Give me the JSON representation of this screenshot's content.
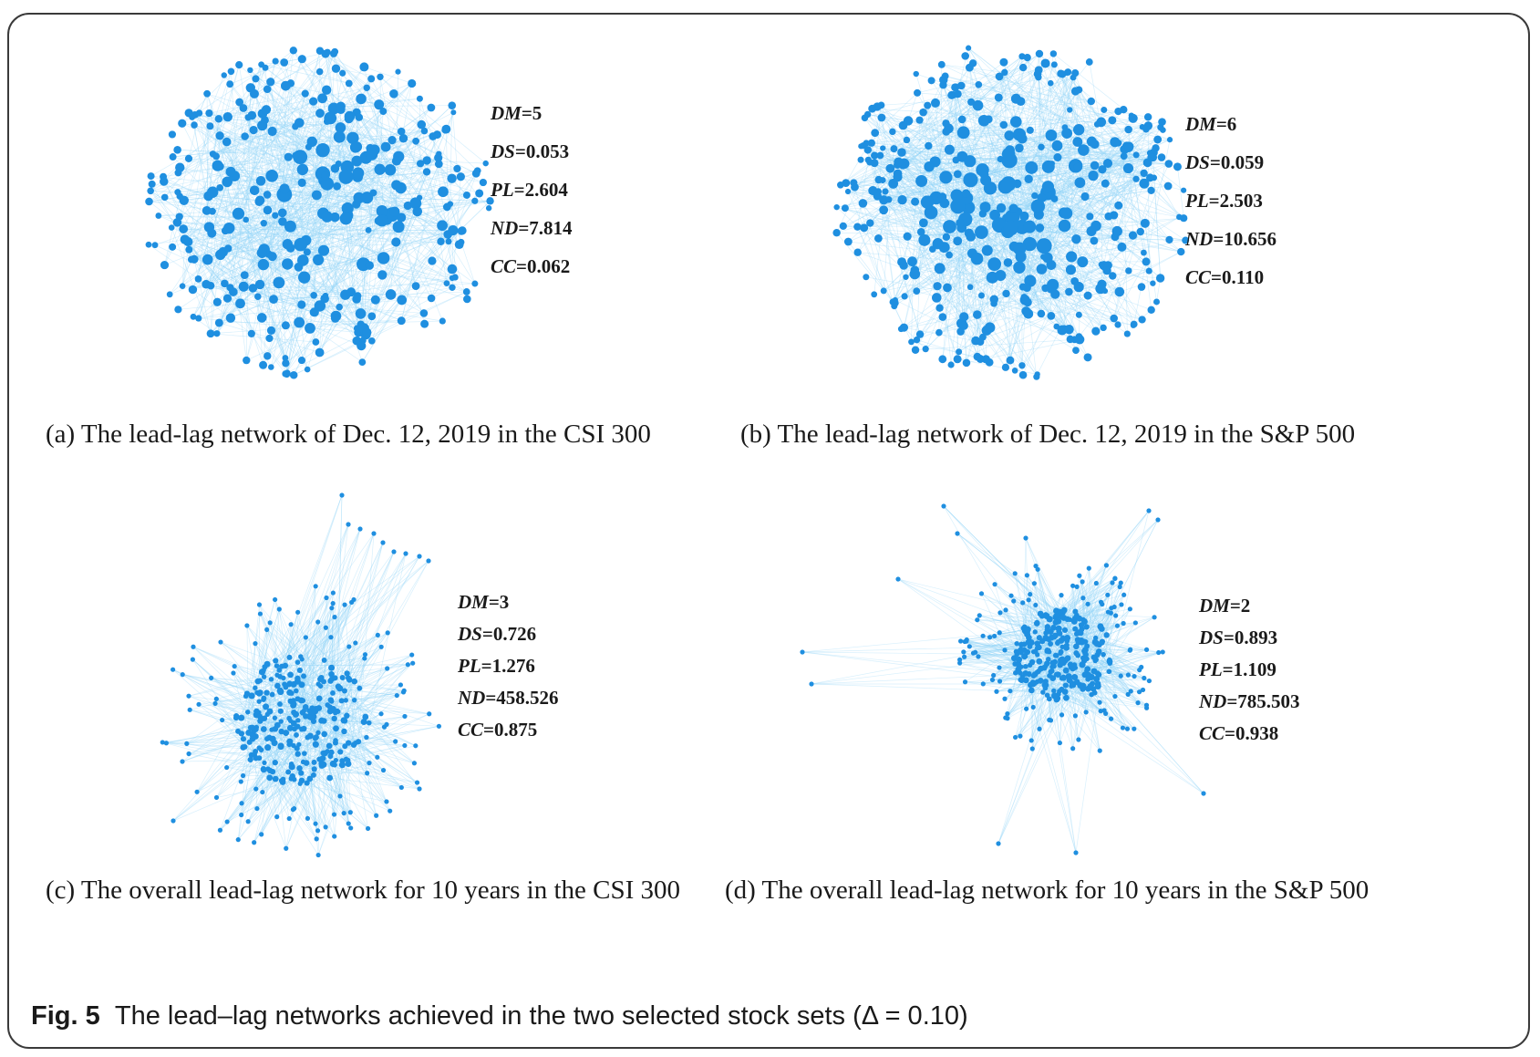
{
  "figure": {
    "label": "Fig. 5",
    "caption": "The lead–lag networks achieved in the two selected stock sets (Δ = 0.10)"
  },
  "panels": [
    {
      "caption": "(a) The lead-lag network of Dec. 12, 2019 in the CSI 300",
      "metrics": [
        {
          "name": "DM",
          "value": "=5"
        },
        {
          "name": "DS",
          "value": "=0.053"
        },
        {
          "name": "PL",
          "value": "=2.604"
        },
        {
          "name": "ND",
          "value": "=7.814"
        },
        {
          "name": "CC",
          "value": "=0.062"
        }
      ]
    },
    {
      "caption": "(b) The lead-lag network of Dec. 12, 2019 in the S&P 500",
      "metrics": [
        {
          "name": "DM",
          "value": "=6"
        },
        {
          "name": "DS",
          "value": "=0.059"
        },
        {
          "name": "PL",
          "value": "=2.503"
        },
        {
          "name": "ND",
          "value": "=10.656"
        },
        {
          "name": "CC",
          "value": "=0.110"
        }
      ]
    },
    {
      "caption": "(c) The overall lead-lag network for 10 years in the CSI 300",
      "metrics": [
        {
          "name": "DM",
          "value": "=3"
        },
        {
          "name": "DS",
          "value": "=0.726"
        },
        {
          "name": "PL",
          "value": "=1.276"
        },
        {
          "name": "ND",
          "value": "=458.526"
        },
        {
          "name": "CC",
          "value": "=0.875"
        }
      ]
    },
    {
      "caption": "(d) The overall lead-lag network for 10 years in the S&P 500",
      "metrics": [
        {
          "name": "DM",
          "value": "=2"
        },
        {
          "name": "DS",
          "value": "=0.893"
        },
        {
          "name": "PL",
          "value": "=1.109"
        },
        {
          "name": "ND",
          "value": "=785.503"
        },
        {
          "name": "CC",
          "value": "=0.938"
        }
      ]
    }
  ],
  "colors": {
    "node": "#1f8fe0",
    "edge": "#8fd3f7"
  }
}
